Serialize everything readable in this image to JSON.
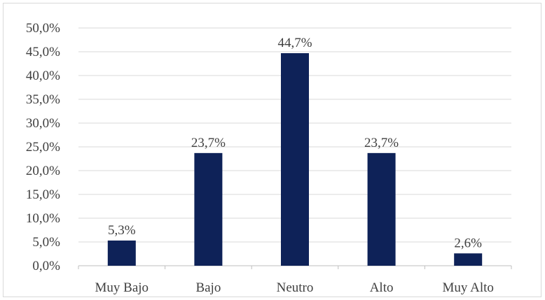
{
  "chart_data": {
    "type": "bar",
    "categories": [
      "Muy Bajo",
      "Bajo",
      "Neutro",
      "Alto",
      "Muy Alto"
    ],
    "values": [
      5.3,
      23.7,
      44.7,
      23.7,
      2.6
    ],
    "data_labels": [
      "5,3%",
      "23,7%",
      "44,7%",
      "23,7%",
      "2,6%"
    ],
    "ylim": [
      0,
      50
    ],
    "y_ticks": [
      "0,0%",
      "5,0%",
      "10,0%",
      "15,0%",
      "20,0%",
      "25,0%",
      "30,0%",
      "35,0%",
      "40,0%",
      "45,0%",
      "50,0%"
    ],
    "grid": true,
    "legend": "none",
    "title": "",
    "xlabel": "",
    "ylabel": "",
    "colors": {
      "bar": "#0e2258",
      "grid": "#d9d9d9",
      "text": "#404040"
    }
  }
}
